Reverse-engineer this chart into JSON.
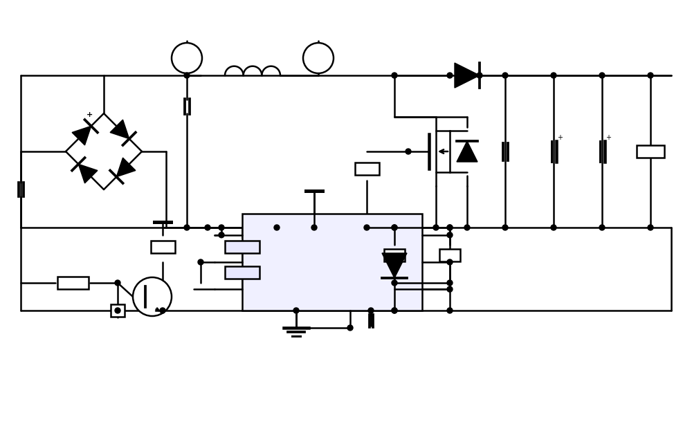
{
  "bg_color": "#ffffff",
  "line_color": "#000000",
  "line_width": 1.8,
  "fig_width": 10.0,
  "fig_height": 6.29,
  "dpi": 100,
  "ic_fill": "#f0f0ff",
  "resistor_fill": "#e8e8ff"
}
